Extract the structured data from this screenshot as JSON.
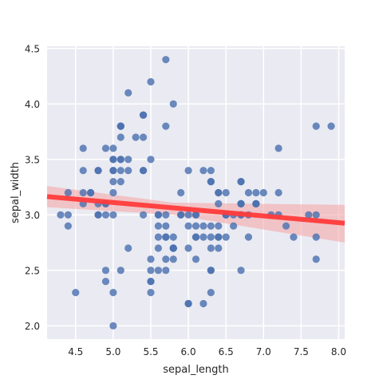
{
  "chart_data": {
    "type": "scatter",
    "title": "",
    "xlabel": "sepal_length",
    "ylabel": "sepal_width",
    "xlim": [
      4.12,
      8.08
    ],
    "ylim": [
      1.88,
      4.52
    ],
    "xticks": [
      "4.5",
      "5.0",
      "5.5",
      "6.0",
      "6.5",
      "7.0",
      "7.5",
      "8.0"
    ],
    "yticks": [
      "2.0",
      "2.5",
      "3.0",
      "3.5",
      "4.0",
      "4.5"
    ],
    "grid": true,
    "background": "#eaeaf2",
    "point_color": "#4c72b0",
    "regression": {
      "color": "#ff3b3b",
      "band_color": "#f4a3a3",
      "line": [
        [
          4.12,
          3.165
        ],
        [
          8.08,
          2.925
        ]
      ],
      "band_upper": [
        [
          4.12,
          3.26
        ],
        [
          5.8,
          3.11
        ],
        [
          8.08,
          3.09
        ]
      ],
      "band_lower": [
        [
          4.12,
          3.07
        ],
        [
          5.8,
          3.0
        ],
        [
          8.08,
          2.75
        ]
      ]
    },
    "points": [
      [
        5.1,
        3.5
      ],
      [
        4.9,
        3.0
      ],
      [
        4.7,
        3.2
      ],
      [
        4.6,
        3.1
      ],
      [
        5.0,
        3.6
      ],
      [
        5.4,
        3.9
      ],
      [
        4.6,
        3.4
      ],
      [
        5.0,
        3.4
      ],
      [
        4.4,
        2.9
      ],
      [
        4.9,
        3.1
      ],
      [
        5.4,
        3.7
      ],
      [
        4.8,
        3.4
      ],
      [
        4.8,
        3.0
      ],
      [
        4.3,
        3.0
      ],
      [
        5.8,
        4.0
      ],
      [
        5.7,
        4.4
      ],
      [
        5.4,
        3.9
      ],
      [
        5.1,
        3.5
      ],
      [
        5.7,
        3.8
      ],
      [
        5.1,
        3.8
      ],
      [
        5.4,
        3.4
      ],
      [
        5.1,
        3.7
      ],
      [
        4.6,
        3.6
      ],
      [
        5.1,
        3.3
      ],
      [
        4.8,
        3.4
      ],
      [
        5.0,
        3.0
      ],
      [
        5.0,
        3.4
      ],
      [
        5.2,
        3.5
      ],
      [
        5.2,
        3.4
      ],
      [
        4.7,
        3.2
      ],
      [
        4.8,
        3.1
      ],
      [
        5.4,
        3.4
      ],
      [
        5.2,
        4.1
      ],
      [
        5.5,
        4.2
      ],
      [
        4.9,
        3.1
      ],
      [
        5.0,
        3.2
      ],
      [
        5.5,
        3.5
      ],
      [
        4.9,
        3.6
      ],
      [
        4.4,
        3.0
      ],
      [
        5.1,
        3.4
      ],
      [
        5.0,
        3.5
      ],
      [
        4.5,
        2.3
      ],
      [
        4.4,
        3.2
      ],
      [
        5.0,
        3.5
      ],
      [
        5.1,
        3.8
      ],
      [
        4.8,
        3.0
      ],
      [
        5.1,
        3.8
      ],
      [
        4.6,
        3.2
      ],
      [
        5.3,
        3.7
      ],
      [
        5.0,
        3.3
      ],
      [
        7.0,
        3.2
      ],
      [
        6.4,
        3.2
      ],
      [
        6.9,
        3.1
      ],
      [
        5.5,
        2.3
      ],
      [
        6.5,
        2.8
      ],
      [
        5.7,
        2.8
      ],
      [
        6.3,
        3.3
      ],
      [
        4.9,
        2.4
      ],
      [
        6.6,
        2.9
      ],
      [
        5.2,
        2.7
      ],
      [
        5.0,
        2.0
      ],
      [
        5.9,
        3.0
      ],
      [
        6.0,
        2.2
      ],
      [
        6.1,
        2.9
      ],
      [
        5.6,
        2.9
      ],
      [
        6.7,
        3.1
      ],
      [
        5.6,
        3.0
      ],
      [
        5.8,
        2.7
      ],
      [
        6.2,
        2.2
      ],
      [
        5.6,
        2.5
      ],
      [
        5.9,
        3.2
      ],
      [
        6.1,
        2.8
      ],
      [
        6.3,
        2.5
      ],
      [
        6.1,
        2.8
      ],
      [
        6.4,
        2.9
      ],
      [
        6.6,
        3.0
      ],
      [
        6.8,
        2.8
      ],
      [
        6.7,
        3.0
      ],
      [
        6.0,
        2.9
      ],
      [
        5.7,
        2.6
      ],
      [
        5.5,
        2.4
      ],
      [
        5.5,
        2.4
      ],
      [
        5.8,
        2.7
      ],
      [
        6.0,
        2.7
      ],
      [
        5.4,
        3.0
      ],
      [
        6.0,
        3.4
      ],
      [
        6.7,
        3.1
      ],
      [
        6.3,
        2.3
      ],
      [
        5.6,
        3.0
      ],
      [
        5.5,
        2.5
      ],
      [
        5.5,
        2.6
      ],
      [
        6.1,
        3.0
      ],
      [
        5.8,
        2.6
      ],
      [
        5.0,
        2.3
      ],
      [
        5.6,
        2.7
      ],
      [
        5.7,
        3.0
      ],
      [
        5.7,
        2.9
      ],
      [
        6.2,
        2.9
      ],
      [
        5.1,
        2.5
      ],
      [
        5.7,
        2.8
      ],
      [
        6.3,
        3.3
      ],
      [
        5.8,
        2.7
      ],
      [
        7.1,
        3.0
      ],
      [
        6.3,
        2.9
      ],
      [
        6.5,
        3.0
      ],
      [
        7.6,
        3.0
      ],
      [
        4.9,
        2.5
      ],
      [
        7.3,
        2.9
      ],
      [
        6.7,
        2.5
      ],
      [
        7.2,
        3.6
      ],
      [
        6.5,
        3.2
      ],
      [
        6.4,
        2.7
      ],
      [
        6.8,
        3.0
      ],
      [
        5.7,
        2.5
      ],
      [
        5.8,
        2.8
      ],
      [
        6.4,
        3.2
      ],
      [
        6.5,
        3.0
      ],
      [
        7.7,
        3.8
      ],
      [
        7.7,
        2.6
      ],
      [
        6.0,
        2.2
      ],
      [
        6.9,
        3.2
      ],
      [
        5.6,
        2.8
      ],
      [
        7.7,
        2.8
      ],
      [
        6.3,
        2.7
      ],
      [
        6.7,
        3.3
      ],
      [
        7.2,
        3.2
      ],
      [
        6.2,
        2.8
      ],
      [
        6.1,
        3.0
      ],
      [
        6.4,
        2.8
      ],
      [
        7.2,
        3.0
      ],
      [
        7.4,
        2.8
      ],
      [
        7.9,
        3.8
      ],
      [
        6.4,
        2.8
      ],
      [
        6.3,
        2.8
      ],
      [
        6.1,
        2.6
      ],
      [
        7.7,
        3.0
      ],
      [
        6.3,
        3.4
      ],
      [
        6.4,
        3.1
      ],
      [
        6.0,
        3.0
      ],
      [
        6.9,
        3.1
      ],
      [
        6.7,
        3.1
      ],
      [
        6.9,
        3.1
      ],
      [
        5.8,
        2.7
      ],
      [
        6.8,
        3.2
      ],
      [
        6.7,
        3.3
      ],
      [
        6.7,
        3.0
      ],
      [
        6.3,
        2.5
      ],
      [
        6.5,
        3.0
      ],
      [
        6.2,
        3.4
      ],
      [
        5.9,
        3.0
      ]
    ]
  }
}
